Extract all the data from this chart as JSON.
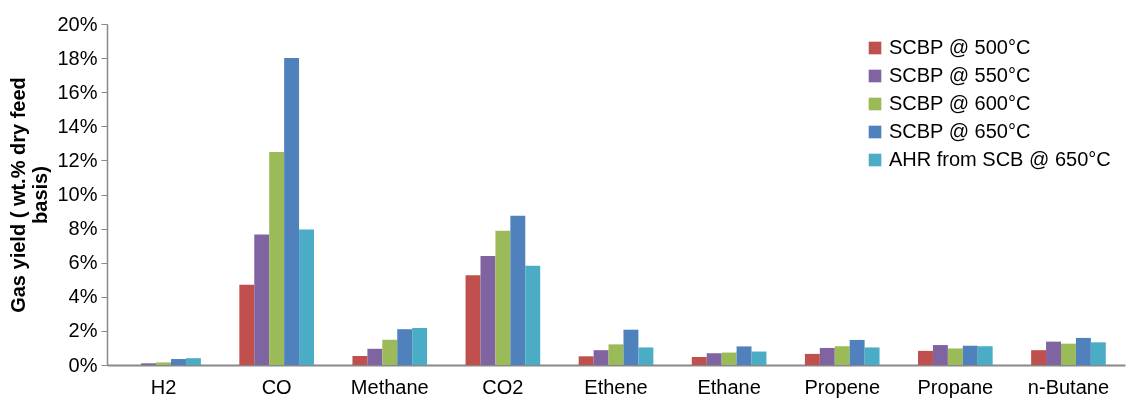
{
  "chart_data": {
    "type": "bar",
    "ylabel": "Gas yield ( wt.% dry feed basis)",
    "categories": [
      "H2",
      "CO",
      "Methane",
      "CO2",
      "Ethene",
      "Ethane",
      "Propene",
      "Propane",
      "n-Butane"
    ],
    "series": [
      {
        "name": "SCBP @ 500°C",
        "color": "#c0504d",
        "values": [
          0,
          4.7,
          0.53,
          5.26,
          0.51,
          0.47,
          0.65,
          0.83,
          0.87
        ]
      },
      {
        "name": "SCBP @ 550°C",
        "color": "#8064a2",
        "values": [
          0.1,
          7.65,
          0.95,
          6.4,
          0.87,
          0.69,
          1.0,
          1.17,
          1.37
        ]
      },
      {
        "name": "SCBP @ 600°C",
        "color": "#9bbb59",
        "values": [
          0.15,
          12.5,
          1.48,
          7.87,
          1.21,
          0.73,
          1.1,
          0.97,
          1.25
        ]
      },
      {
        "name": "SCBP @ 650°C",
        "color": "#4f81bd",
        "values": [
          0.35,
          18,
          2.1,
          8.75,
          2.07,
          1.09,
          1.47,
          1.13,
          1.59
        ]
      },
      {
        "name": "AHR from SCB @ 650°C",
        "color": "#4bacc6",
        "values": [
          0.4,
          7.95,
          2.17,
          5.82,
          1.03,
          0.79,
          1.03,
          1.1,
          1.33
        ]
      }
    ],
    "ylim": [
      0,
      20
    ],
    "yticks": [
      {
        "value": 0,
        "label": "0%"
      },
      {
        "value": 2,
        "label": "2%"
      },
      {
        "value": 4,
        "label": "4%"
      },
      {
        "value": 6,
        "label": "6%"
      },
      {
        "value": 8,
        "label": "8%"
      },
      {
        "value": 10,
        "label": "10%"
      },
      {
        "value": 12,
        "label": "12%"
      },
      {
        "value": 14,
        "label": "14%"
      },
      {
        "value": 16,
        "label": "16%"
      },
      {
        "value": 18,
        "label": "18%"
      },
      {
        "value": 20,
        "label": "20%"
      }
    ],
    "grid": false,
    "legend": "top right"
  }
}
